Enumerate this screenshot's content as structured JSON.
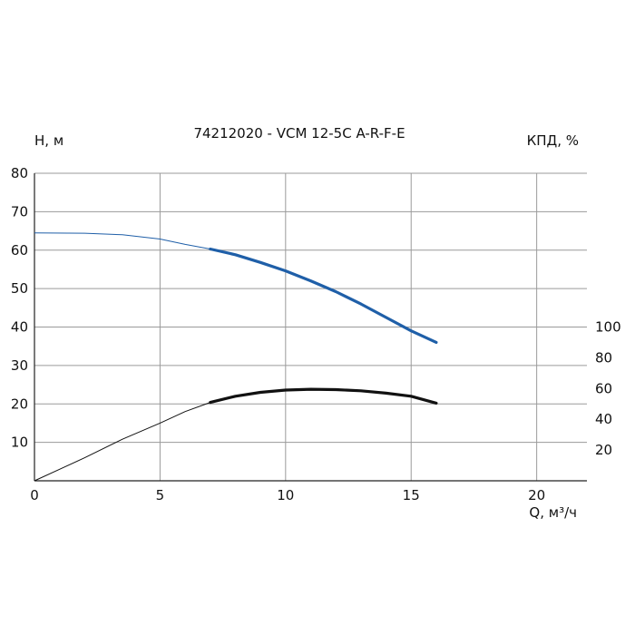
{
  "chart_data": {
    "type": "line",
    "title": "74212020 - VCM 12-5C A-R-F-E",
    "ylabel_left": "Н, м",
    "ylabel_right": "КПД, %",
    "xlabel": "Q, м³/ч",
    "xlim": [
      0,
      22
    ],
    "ylim": [
      0,
      80
    ],
    "y2lim": [
      0,
      200
    ],
    "grid": true,
    "x_ticks": [
      0,
      5,
      10,
      15,
      20
    ],
    "y_ticks": [
      10,
      20,
      30,
      40,
      50,
      60,
      70,
      80
    ],
    "y2_ticks": [
      20,
      40,
      60,
      80,
      100
    ],
    "series": [
      {
        "axis": "left",
        "color": "#1f5fa8",
        "points_thin": [
          [
            0,
            64.5
          ],
          [
            2,
            64.4
          ],
          [
            3.5,
            64.0
          ],
          [
            5,
            62.9
          ],
          [
            6,
            61.5
          ],
          [
            7,
            60.3
          ]
        ],
        "points_bold": [
          [
            7,
            60.3
          ],
          [
            8,
            58.8
          ],
          [
            9,
            56.8
          ],
          [
            10,
            54.6
          ],
          [
            11,
            52.0
          ],
          [
            12,
            49.2
          ],
          [
            13,
            46.0
          ],
          [
            14,
            42.5
          ],
          [
            15,
            39.0
          ],
          [
            16,
            36.0
          ]
        ]
      },
      {
        "axis": "right",
        "color": "#111111",
        "points_thin": [
          [
            0,
            0
          ],
          [
            1,
            7.5
          ],
          [
            2,
            15
          ],
          [
            3.5,
            27
          ],
          [
            5,
            37.5
          ],
          [
            6,
            45
          ],
          [
            7,
            51
          ]
        ],
        "points_bold": [
          [
            7,
            51
          ],
          [
            8,
            55
          ],
          [
            9,
            57.5
          ],
          [
            10,
            59
          ],
          [
            11,
            59.5
          ],
          [
            12,
            59.3
          ],
          [
            13,
            58.5
          ],
          [
            14,
            57
          ],
          [
            15,
            55
          ],
          [
            16,
            50.5
          ]
        ]
      }
    ]
  }
}
